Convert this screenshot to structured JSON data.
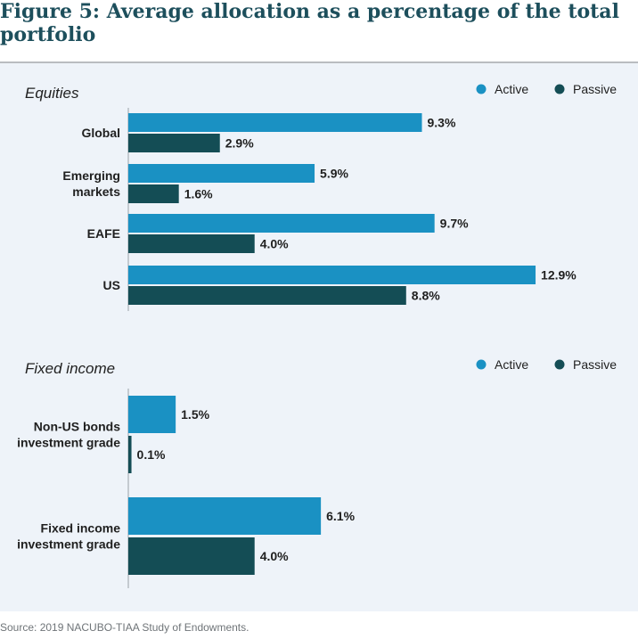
{
  "title": "Figure 5: Average allocation as a percentage of the total portfolio",
  "source": "Source: 2019 NACUBO-TIAA Study of Endowments.",
  "colors": {
    "active": "#1a91c3",
    "passive": "#144d55",
    "title": "#1d4f5c",
    "panel": "#eef3f9"
  },
  "chart_data": [
    {
      "type": "bar",
      "orientation": "horizontal",
      "title": "Equities",
      "categories": [
        "Global",
        "Emerging markets",
        "EAFE",
        "US"
      ],
      "category_lines": [
        [
          "Global"
        ],
        [
          "Emerging",
          "markets"
        ],
        [
          "EAFE"
        ],
        [
          "US"
        ]
      ],
      "series": [
        {
          "name": "Active",
          "values": [
            9.3,
            5.9,
            9.7,
            12.9
          ],
          "labels": [
            "9.3%",
            "5.9%",
            "9.7%",
            "12.9%"
          ]
        },
        {
          "name": "Passive",
          "values": [
            2.9,
            1.6,
            4.0,
            8.8
          ],
          "labels": [
            "2.9%",
            "1.6%",
            "4.0%",
            "8.8%"
          ]
        }
      ],
      "legend_position": "top-right"
    },
    {
      "type": "bar",
      "orientation": "horizontal",
      "title": "Fixed income",
      "categories": [
        "Non-US bonds investment grade",
        "Fixed income investment grade"
      ],
      "category_lines": [
        [
          "Non-US bonds",
          "investment grade"
        ],
        [
          "Fixed income",
          "investment grade"
        ]
      ],
      "series": [
        {
          "name": "Active",
          "values": [
            1.5,
            6.1
          ],
          "labels": [
            "1.5%",
            "6.1%"
          ]
        },
        {
          "name": "Passive",
          "values": [
            0.1,
            4.0
          ],
          "labels": [
            "0.1%",
            "4.0%"
          ]
        }
      ],
      "legend_position": "top-right"
    }
  ]
}
